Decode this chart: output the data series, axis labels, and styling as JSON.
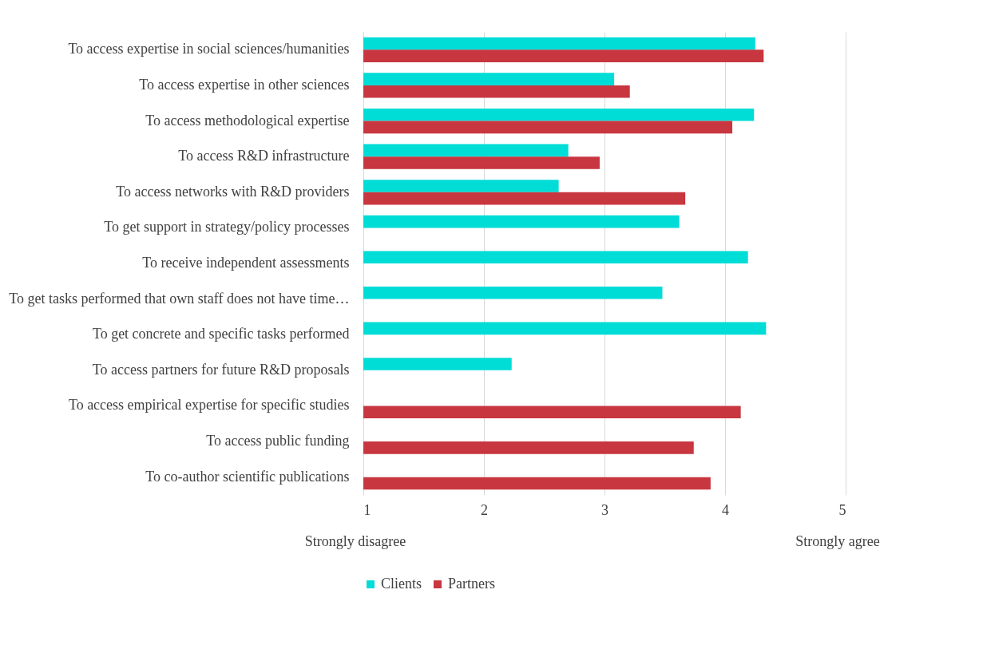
{
  "chart_data": {
    "type": "bar",
    "orientation": "horizontal",
    "categories": [
      "To access expertise in social sciences/humanities",
      "To access expertise in other sciences",
      "To access methodological expertise",
      "To access R&D infrastructure",
      "To access networks with R&D providers",
      "To get support in strategy/policy processes",
      "To receive independent assessments",
      "To get tasks performed that own staff does not have time…",
      "To get concrete and specific tasks performed",
      "To access partners for future R&D proposals",
      "To access empirical expertise for specific studies",
      "To access public funding",
      "To co-author scientific publications"
    ],
    "series": [
      {
        "name": "Clients",
        "color": "#00dcd6",
        "values": [
          4.25,
          3.08,
          4.24,
          2.7,
          2.62,
          3.62,
          4.19,
          3.48,
          4.34,
          2.23,
          null,
          null,
          null
        ]
      },
      {
        "name": "Partners",
        "color": "#c8363f",
        "values": [
          4.32,
          3.21,
          4.06,
          2.96,
          3.67,
          null,
          null,
          null,
          null,
          null,
          4.13,
          3.74,
          3.88
        ]
      }
    ],
    "xlim": [
      1,
      5
    ],
    "xticks": [
      1,
      2,
      3,
      4,
      5
    ],
    "grid": "x",
    "legend": "bottom",
    "annotations": [
      "Strongly disagree",
      "Strongly agree"
    ]
  }
}
